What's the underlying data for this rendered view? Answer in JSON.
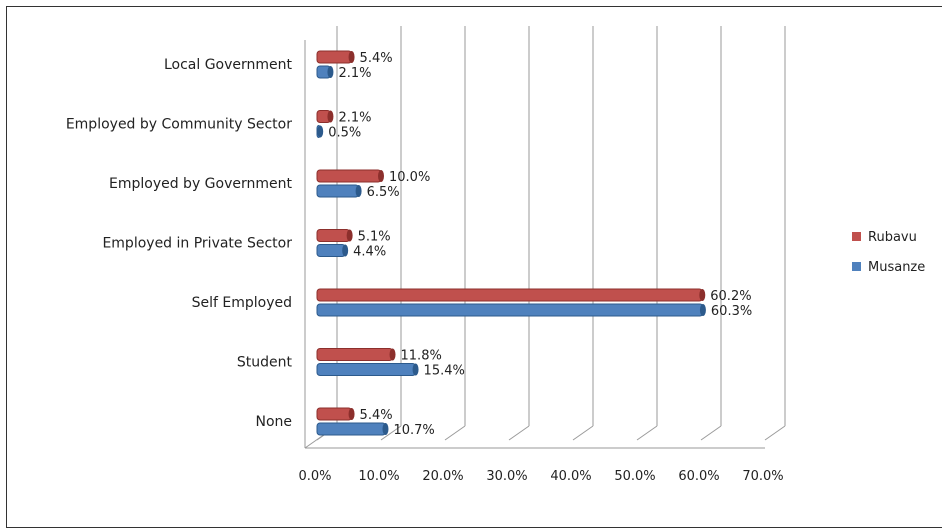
{
  "chart_data": {
    "type": "bar",
    "orientation": "horizontal",
    "categories": [
      "Local Government",
      "Employed by Community Sector",
      "Employed by Government",
      "Employed in Private Sector",
      "Self Employed",
      "Student",
      "None"
    ],
    "series": [
      {
        "name": "Rubavu",
        "color": "#c0504d",
        "values": [
          5.4,
          2.1,
          10.0,
          5.1,
          60.2,
          11.8,
          5.4
        ],
        "labels": [
          "5.4%",
          "2.1%",
          "10.0%",
          "5.1%",
          "60.2%",
          "11.8%",
          "5.4%"
        ]
      },
      {
        "name": "Musanze",
        "color": "#4f81bd",
        "values": [
          2.1,
          0.5,
          6.5,
          4.4,
          60.3,
          15.4,
          10.7
        ],
        "labels": [
          "2.1%",
          "0.5%",
          "6.5%",
          "4.4%",
          "60.3%",
          "15.4%",
          "10.7%"
        ]
      }
    ],
    "x_ticks": [
      "0.0%",
      "10.0%",
      "20.0%",
      "30.0%",
      "40.0%",
      "50.0%",
      "60.0%",
      "70.0%"
    ],
    "xlim": [
      0,
      70
    ],
    "grid": true,
    "legend_position": "right",
    "title": "",
    "xlabel": "",
    "ylabel": ""
  }
}
